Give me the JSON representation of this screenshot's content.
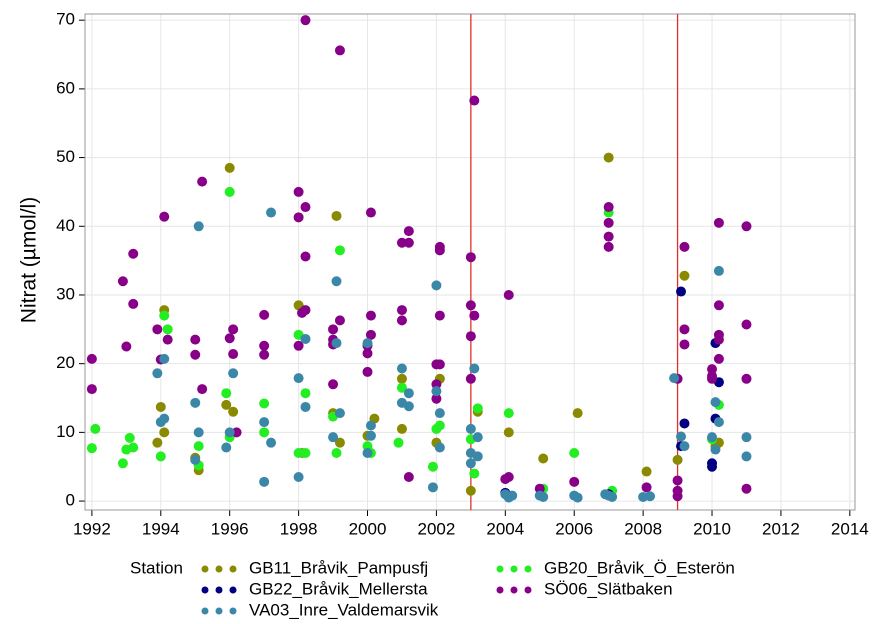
{
  "chart_data": {
    "type": "scatter",
    "ylabel": "Nitrat (µmol/l)",
    "legend_title": "Station",
    "legend": "bottom",
    "grid": true,
    "xlim": [
      1991.8,
      2014.15
    ],
    "ylim": [
      -1.3,
      70.9
    ],
    "xticks": [
      1992,
      1994,
      1996,
      1998,
      2000,
      2002,
      2004,
      2006,
      2008,
      2010,
      2012,
      2014
    ],
    "yticks": [
      0,
      10,
      20,
      30,
      40,
      50,
      60,
      70
    ],
    "reference_lines": [
      {
        "x": 2003,
        "color": "#e0302a"
      },
      {
        "x": 2009,
        "color": "#e0302a"
      }
    ],
    "series": [
      {
        "name": "GB11_Bråvik_Pampusfj",
        "color": "#8a8a00",
        "points": [
          [
            1994.0,
            13.7
          ],
          [
            1994.1,
            27.8
          ],
          [
            1994.1,
            10
          ],
          [
            1993.9,
            8.5
          ],
          [
            1995.0,
            6.3
          ],
          [
            1995.1,
            4.5
          ],
          [
            1996.0,
            48.5
          ],
          [
            1995.9,
            14
          ],
          [
            1996.1,
            13
          ],
          [
            1998.0,
            28.5
          ],
          [
            1998.1,
            7
          ],
          [
            1999.1,
            41.5
          ],
          [
            1999.0,
            12.8
          ],
          [
            1999.2,
            8.5
          ],
          [
            2000.0,
            9.5
          ],
          [
            2000.2,
            12
          ],
          [
            2001.0,
            17.8
          ],
          [
            2001.0,
            10.5
          ],
          [
            2002.1,
            17.8
          ],
          [
            2002.0,
            8.5
          ],
          [
            2003.0,
            1.5
          ],
          [
            2003.2,
            13
          ],
          [
            2004.1,
            10
          ],
          [
            2005.1,
            6.2
          ],
          [
            2006.1,
            12.8
          ],
          [
            2007.0,
            50
          ],
          [
            2008.1,
            4.3
          ],
          [
            2009.0,
            6
          ],
          [
            2009.2,
            32.8
          ],
          [
            2010.1,
            8
          ],
          [
            2010.2,
            8.5
          ]
        ]
      },
      {
        "name": "GB20_Bråvik_Ö_Esterön",
        "color": "#22ee22",
        "points": [
          [
            1992.1,
            10.5
          ],
          [
            1992.0,
            7.7
          ],
          [
            1992.9,
            5.5
          ],
          [
            1993.0,
            7.5
          ],
          [
            1993.1,
            9.2
          ],
          [
            1993.2,
            7.8
          ],
          [
            1994.0,
            6.5
          ],
          [
            1994.1,
            27
          ],
          [
            1994.2,
            25
          ],
          [
            1995.1,
            8
          ],
          [
            1995.1,
            5.2
          ],
          [
            1996.0,
            45
          ],
          [
            1996.0,
            9.3
          ],
          [
            1995.9,
            15.7
          ],
          [
            1997.0,
            14.2
          ],
          [
            1997.0,
            10
          ],
          [
            1998.0,
            24.2
          ],
          [
            1998.0,
            7
          ],
          [
            1998.2,
            15.7
          ],
          [
            1998.2,
            7
          ],
          [
            1999.0,
            12.3
          ],
          [
            1999.2,
            36.5
          ],
          [
            1999.1,
            7
          ],
          [
            2000.0,
            8
          ],
          [
            2000.1,
            7
          ],
          [
            2001.0,
            16.5
          ],
          [
            2000.9,
            8.5
          ],
          [
            2002.0,
            10.5
          ],
          [
            2002.1,
            11
          ],
          [
            2001.9,
            5
          ],
          [
            2003.0,
            9
          ],
          [
            2003.2,
            13.5
          ],
          [
            2003.1,
            4
          ],
          [
            2004.1,
            12.8
          ],
          [
            2005.1,
            1.8
          ],
          [
            2006.0,
            7
          ],
          [
            2007.0,
            42
          ],
          [
            2007.1,
            1.5
          ],
          [
            2010.0,
            9
          ],
          [
            2010.2,
            14
          ]
        ]
      },
      {
        "name": "GB22_Bråvik_Mellersta",
        "color": "#000080",
        "points": [
          [
            2009.1,
            30.5
          ],
          [
            2009.2,
            11.3
          ],
          [
            2009.1,
            8
          ],
          [
            2010.1,
            23
          ],
          [
            2010.2,
            17.3
          ],
          [
            2010.1,
            12
          ],
          [
            2010.0,
            5.5
          ],
          [
            2010.0,
            5
          ],
          [
            2004.0,
            1.2
          ],
          [
            2007.0,
            1
          ]
        ]
      },
      {
        "name": "SÖ06_Slätbaken",
        "color": "#880088",
        "points": [
          [
            1992.0,
            20.7
          ],
          [
            1992.0,
            16.3
          ],
          [
            1992.9,
            32
          ],
          [
            1993.0,
            22.5
          ],
          [
            1993.2,
            36
          ],
          [
            1993.2,
            28.7
          ],
          [
            1993.9,
            25
          ],
          [
            1994.1,
            41.4
          ],
          [
            1994.0,
            20.6
          ],
          [
            1994.2,
            23.5
          ],
          [
            1995.0,
            23.5
          ],
          [
            1995.0,
            21.3
          ],
          [
            1995.2,
            46.5
          ],
          [
            1995.2,
            16.3
          ],
          [
            1996.0,
            23.7
          ],
          [
            1996.1,
            25
          ],
          [
            1996.1,
            21.4
          ],
          [
            1996.2,
            10
          ],
          [
            1997.0,
            27.1
          ],
          [
            1997.0,
            22.6
          ],
          [
            1997.0,
            21.3
          ],
          [
            1998.0,
            45
          ],
          [
            1998.0,
            41.3
          ],
          [
            1998.1,
            27.4
          ],
          [
            1998.2,
            70
          ],
          [
            1998.2,
            42.8
          ],
          [
            1998.2,
            35.6
          ],
          [
            1998.2,
            27.8
          ],
          [
            1998.0,
            22.6
          ],
          [
            1999.0,
            25
          ],
          [
            1999.0,
            23.5
          ],
          [
            1999.0,
            22.8
          ],
          [
            1999.2,
            65.6
          ],
          [
            1999.2,
            26.3
          ],
          [
            1999.0,
            17
          ],
          [
            2000.1,
            42
          ],
          [
            2000.1,
            27
          ],
          [
            2000.1,
            24.2
          ],
          [
            2000.0,
            22.6
          ],
          [
            2000.0,
            21.5
          ],
          [
            2000.0,
            18.8
          ],
          [
            2001.0,
            37.6
          ],
          [
            2001.2,
            39.3
          ],
          [
            2001.2,
            37.6
          ],
          [
            2001.0,
            27.8
          ],
          [
            2001.0,
            26.3
          ],
          [
            2001.2,
            3.5
          ],
          [
            2002.1,
            37
          ],
          [
            2002.1,
            36.5
          ],
          [
            2002.1,
            27
          ],
          [
            2002.0,
            19.9
          ],
          [
            2002.1,
            19.9
          ],
          [
            2002.0,
            17
          ],
          [
            2002.0,
            14.9
          ],
          [
            2003.0,
            35.5
          ],
          [
            2003.0,
            28.5
          ],
          [
            2003.1,
            58.3
          ],
          [
            2003.1,
            27
          ],
          [
            2003.0,
            24
          ],
          [
            2003.0,
            17.8
          ],
          [
            2004.0,
            3.2
          ],
          [
            2004.1,
            30
          ],
          [
            2004.1,
            3.5
          ],
          [
            2005.0,
            1.8
          ],
          [
            2006.0,
            2.8
          ],
          [
            2007.0,
            42.8
          ],
          [
            2007.0,
            40.5
          ],
          [
            2007.0,
            38.5
          ],
          [
            2007.0,
            37
          ],
          [
            2008.1,
            2
          ],
          [
            2009.0,
            17.8
          ],
          [
            2009.0,
            3
          ],
          [
            2009.0,
            1.5
          ],
          [
            2009.0,
            0.7
          ],
          [
            2009.2,
            37
          ],
          [
            2009.2,
            25
          ],
          [
            2009.2,
            22.8
          ],
          [
            2010.0,
            19.2
          ],
          [
            2010.0,
            18.2
          ],
          [
            2010.0,
            17.8
          ],
          [
            2010.2,
            40.5
          ],
          [
            2010.2,
            28.5
          ],
          [
            2010.2,
            24.2
          ],
          [
            2010.2,
            23.5
          ],
          [
            2010.2,
            20.7
          ],
          [
            2011.0,
            40
          ],
          [
            2011.0,
            25.7
          ],
          [
            2011.0,
            17.8
          ],
          [
            2011.0,
            1.8
          ]
        ]
      },
      {
        "name": "VA03_Inre_Valdemarsvik",
        "color": "#3a87a8",
        "points": [
          [
            1993.9,
            18.6
          ],
          [
            1994.1,
            20.7
          ],
          [
            1994.0,
            11.5
          ],
          [
            1994.1,
            12
          ],
          [
            1995.0,
            14.3
          ],
          [
            1995.1,
            40
          ],
          [
            1995.1,
            10
          ],
          [
            1995.0,
            6
          ],
          [
            1996.0,
            10
          ],
          [
            1996.1,
            18.6
          ],
          [
            1995.9,
            7.8
          ],
          [
            1997.0,
            11.5
          ],
          [
            1997.2,
            42
          ],
          [
            1997.2,
            8.5
          ],
          [
            1997.0,
            2.8
          ],
          [
            1998.0,
            17.9
          ],
          [
            1998.2,
            23.6
          ],
          [
            1998.2,
            13.7
          ],
          [
            1998.0,
            3.5
          ],
          [
            1999.1,
            32
          ],
          [
            1999.1,
            23
          ],
          [
            1999.0,
            9.3
          ],
          [
            1999.2,
            12.8
          ],
          [
            2000.0,
            23
          ],
          [
            2000.0,
            7
          ],
          [
            2000.1,
            9.5
          ],
          [
            2000.1,
            11
          ],
          [
            2001.0,
            19.3
          ],
          [
            2001.0,
            14.3
          ],
          [
            2001.2,
            15.7
          ],
          [
            2001.2,
            13.8
          ],
          [
            2002.0,
            31.4
          ],
          [
            2001.9,
            2
          ],
          [
            2002.1,
            12.8
          ],
          [
            2002.1,
            7.8
          ],
          [
            2002.0,
            16
          ],
          [
            2003.0,
            10.5
          ],
          [
            2003.0,
            7
          ],
          [
            2003.0,
            5.5
          ],
          [
            2003.1,
            19.3
          ],
          [
            2003.2,
            9.3
          ],
          [
            2003.2,
            6.5
          ],
          [
            2004.0,
            1
          ],
          [
            2004.1,
            0.5
          ],
          [
            2004.2,
            0.8
          ],
          [
            2005.0,
            0.8
          ],
          [
            2005.1,
            0.6
          ],
          [
            2006.0,
            0.8
          ],
          [
            2006.1,
            0.5
          ],
          [
            2006.9,
            1
          ],
          [
            2007.1,
            0.6
          ],
          [
            2007.0,
            0.8
          ],
          [
            2008.0,
            0.6
          ],
          [
            2008.2,
            0.7
          ],
          [
            2008.9,
            17.9
          ],
          [
            2009.1,
            9.4
          ],
          [
            2009.2,
            8
          ],
          [
            2010.0,
            9.3
          ],
          [
            2010.1,
            7.5
          ],
          [
            2010.2,
            33.5
          ],
          [
            2010.2,
            11.5
          ],
          [
            2010.1,
            14.4
          ],
          [
            2011.0,
            9.3
          ],
          [
            2011.0,
            6.5
          ]
        ]
      }
    ]
  }
}
